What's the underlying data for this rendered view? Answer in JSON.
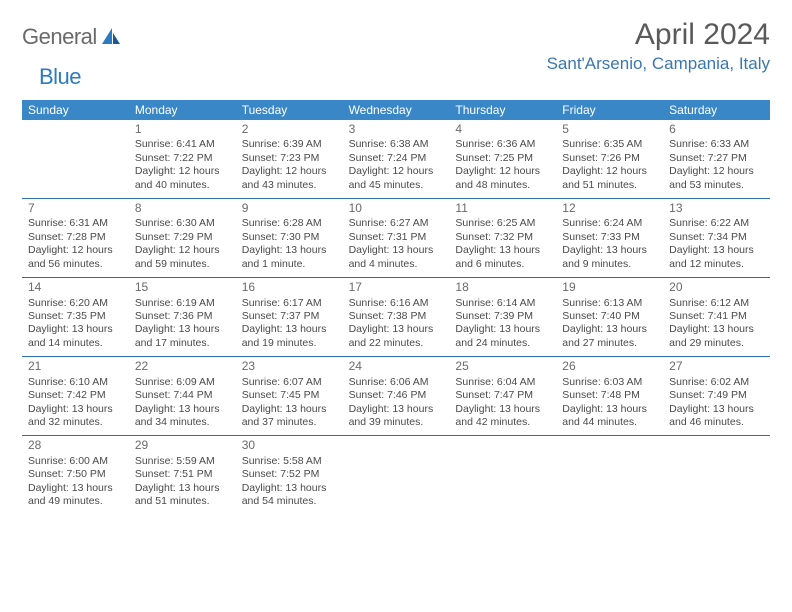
{
  "brand": {
    "general": "General",
    "blue": "Blue"
  },
  "title": "April 2024",
  "location": "Sant'Arsenio, Campania, Italy",
  "colors": {
    "header_bg": "#3a87c8",
    "header_text": "#ffffff",
    "border": "#2f6fa8",
    "location_text": "#3a77b0",
    "body_text": "#4a4a4a"
  },
  "day_names": [
    "Sunday",
    "Monday",
    "Tuesday",
    "Wednesday",
    "Thursday",
    "Friday",
    "Saturday"
  ],
  "weeks": [
    [
      {
        "day": "",
        "sr": "",
        "ss": "",
        "dl1": "",
        "dl2": ""
      },
      {
        "day": "1",
        "sr": "Sunrise: 6:41 AM",
        "ss": "Sunset: 7:22 PM",
        "dl1": "Daylight: 12 hours",
        "dl2": "and 40 minutes."
      },
      {
        "day": "2",
        "sr": "Sunrise: 6:39 AM",
        "ss": "Sunset: 7:23 PM",
        "dl1": "Daylight: 12 hours",
        "dl2": "and 43 minutes."
      },
      {
        "day": "3",
        "sr": "Sunrise: 6:38 AM",
        "ss": "Sunset: 7:24 PM",
        "dl1": "Daylight: 12 hours",
        "dl2": "and 45 minutes."
      },
      {
        "day": "4",
        "sr": "Sunrise: 6:36 AM",
        "ss": "Sunset: 7:25 PM",
        "dl1": "Daylight: 12 hours",
        "dl2": "and 48 minutes."
      },
      {
        "day": "5",
        "sr": "Sunrise: 6:35 AM",
        "ss": "Sunset: 7:26 PM",
        "dl1": "Daylight: 12 hours",
        "dl2": "and 51 minutes."
      },
      {
        "day": "6",
        "sr": "Sunrise: 6:33 AM",
        "ss": "Sunset: 7:27 PM",
        "dl1": "Daylight: 12 hours",
        "dl2": "and 53 minutes."
      }
    ],
    [
      {
        "day": "7",
        "sr": "Sunrise: 6:31 AM",
        "ss": "Sunset: 7:28 PM",
        "dl1": "Daylight: 12 hours",
        "dl2": "and 56 minutes."
      },
      {
        "day": "8",
        "sr": "Sunrise: 6:30 AM",
        "ss": "Sunset: 7:29 PM",
        "dl1": "Daylight: 12 hours",
        "dl2": "and 59 minutes."
      },
      {
        "day": "9",
        "sr": "Sunrise: 6:28 AM",
        "ss": "Sunset: 7:30 PM",
        "dl1": "Daylight: 13 hours",
        "dl2": "and 1 minute."
      },
      {
        "day": "10",
        "sr": "Sunrise: 6:27 AM",
        "ss": "Sunset: 7:31 PM",
        "dl1": "Daylight: 13 hours",
        "dl2": "and 4 minutes."
      },
      {
        "day": "11",
        "sr": "Sunrise: 6:25 AM",
        "ss": "Sunset: 7:32 PM",
        "dl1": "Daylight: 13 hours",
        "dl2": "and 6 minutes."
      },
      {
        "day": "12",
        "sr": "Sunrise: 6:24 AM",
        "ss": "Sunset: 7:33 PM",
        "dl1": "Daylight: 13 hours",
        "dl2": "and 9 minutes."
      },
      {
        "day": "13",
        "sr": "Sunrise: 6:22 AM",
        "ss": "Sunset: 7:34 PM",
        "dl1": "Daylight: 13 hours",
        "dl2": "and 12 minutes."
      }
    ],
    [
      {
        "day": "14",
        "sr": "Sunrise: 6:20 AM",
        "ss": "Sunset: 7:35 PM",
        "dl1": "Daylight: 13 hours",
        "dl2": "and 14 minutes."
      },
      {
        "day": "15",
        "sr": "Sunrise: 6:19 AM",
        "ss": "Sunset: 7:36 PM",
        "dl1": "Daylight: 13 hours",
        "dl2": "and 17 minutes."
      },
      {
        "day": "16",
        "sr": "Sunrise: 6:17 AM",
        "ss": "Sunset: 7:37 PM",
        "dl1": "Daylight: 13 hours",
        "dl2": "and 19 minutes."
      },
      {
        "day": "17",
        "sr": "Sunrise: 6:16 AM",
        "ss": "Sunset: 7:38 PM",
        "dl1": "Daylight: 13 hours",
        "dl2": "and 22 minutes."
      },
      {
        "day": "18",
        "sr": "Sunrise: 6:14 AM",
        "ss": "Sunset: 7:39 PM",
        "dl1": "Daylight: 13 hours",
        "dl2": "and 24 minutes."
      },
      {
        "day": "19",
        "sr": "Sunrise: 6:13 AM",
        "ss": "Sunset: 7:40 PM",
        "dl1": "Daylight: 13 hours",
        "dl2": "and 27 minutes."
      },
      {
        "day": "20",
        "sr": "Sunrise: 6:12 AM",
        "ss": "Sunset: 7:41 PM",
        "dl1": "Daylight: 13 hours",
        "dl2": "and 29 minutes."
      }
    ],
    [
      {
        "day": "21",
        "sr": "Sunrise: 6:10 AM",
        "ss": "Sunset: 7:42 PM",
        "dl1": "Daylight: 13 hours",
        "dl2": "and 32 minutes."
      },
      {
        "day": "22",
        "sr": "Sunrise: 6:09 AM",
        "ss": "Sunset: 7:44 PM",
        "dl1": "Daylight: 13 hours",
        "dl2": "and 34 minutes."
      },
      {
        "day": "23",
        "sr": "Sunrise: 6:07 AM",
        "ss": "Sunset: 7:45 PM",
        "dl1": "Daylight: 13 hours",
        "dl2": "and 37 minutes."
      },
      {
        "day": "24",
        "sr": "Sunrise: 6:06 AM",
        "ss": "Sunset: 7:46 PM",
        "dl1": "Daylight: 13 hours",
        "dl2": "and 39 minutes."
      },
      {
        "day": "25",
        "sr": "Sunrise: 6:04 AM",
        "ss": "Sunset: 7:47 PM",
        "dl1": "Daylight: 13 hours",
        "dl2": "and 42 minutes."
      },
      {
        "day": "26",
        "sr": "Sunrise: 6:03 AM",
        "ss": "Sunset: 7:48 PM",
        "dl1": "Daylight: 13 hours",
        "dl2": "and 44 minutes."
      },
      {
        "day": "27",
        "sr": "Sunrise: 6:02 AM",
        "ss": "Sunset: 7:49 PM",
        "dl1": "Daylight: 13 hours",
        "dl2": "and 46 minutes."
      }
    ],
    [
      {
        "day": "28",
        "sr": "Sunrise: 6:00 AM",
        "ss": "Sunset: 7:50 PM",
        "dl1": "Daylight: 13 hours",
        "dl2": "and 49 minutes."
      },
      {
        "day": "29",
        "sr": "Sunrise: 5:59 AM",
        "ss": "Sunset: 7:51 PM",
        "dl1": "Daylight: 13 hours",
        "dl2": "and 51 minutes."
      },
      {
        "day": "30",
        "sr": "Sunrise: 5:58 AM",
        "ss": "Sunset: 7:52 PM",
        "dl1": "Daylight: 13 hours",
        "dl2": "and 54 minutes."
      },
      {
        "day": "",
        "sr": "",
        "ss": "",
        "dl1": "",
        "dl2": ""
      },
      {
        "day": "",
        "sr": "",
        "ss": "",
        "dl1": "",
        "dl2": ""
      },
      {
        "day": "",
        "sr": "",
        "ss": "",
        "dl1": "",
        "dl2": ""
      },
      {
        "day": "",
        "sr": "",
        "ss": "",
        "dl1": "",
        "dl2": ""
      }
    ]
  ]
}
